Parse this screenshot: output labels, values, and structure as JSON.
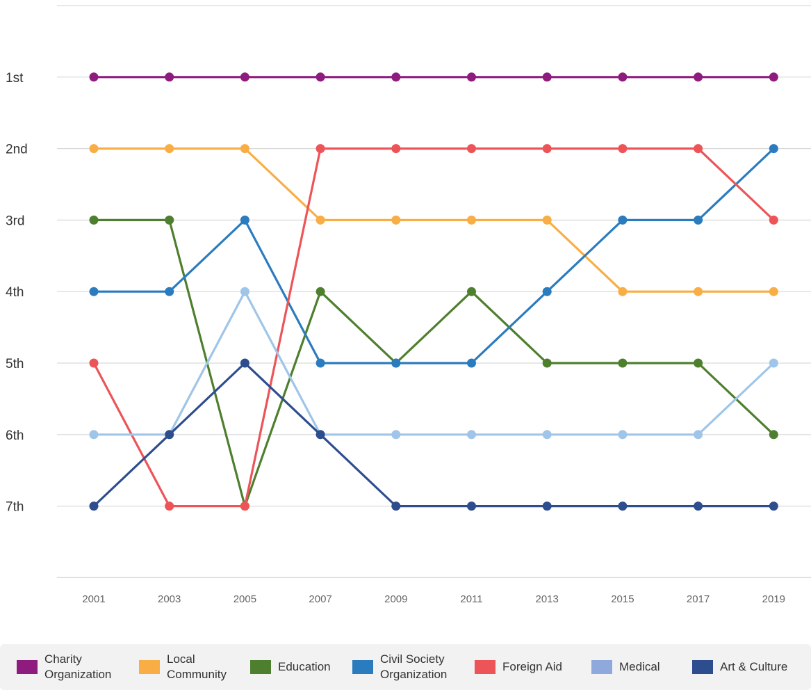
{
  "chart_data": {
    "type": "line",
    "title": "",
    "xlabel": "",
    "ylabel": "",
    "categories": [
      "2001",
      "2003",
      "2005",
      "2007",
      "2009",
      "2011",
      "2013",
      "2015",
      "2017",
      "2019"
    ],
    "ytick_labels": [
      "1st",
      "2nd",
      "3rd",
      "4th",
      "5th",
      "6th",
      "7th"
    ],
    "ylim": [
      0,
      8
    ],
    "y_inverted": true,
    "grid": "horizontal",
    "legend_position": "bottom",
    "series": [
      {
        "name": "Charity Organization",
        "color": "#8e1b7e",
        "values": [
          1,
          1,
          1,
          1,
          1,
          1,
          1,
          1,
          1,
          1
        ]
      },
      {
        "name": "Local Community",
        "color": "#f8ae45",
        "values": [
          2,
          2,
          2,
          3,
          3,
          3,
          3,
          4,
          4,
          4
        ]
      },
      {
        "name": "Education",
        "color": "#4e7f2e",
        "values": [
          3,
          3,
          7,
          4,
          5,
          4,
          5,
          5,
          5,
          6
        ]
      },
      {
        "name": "Civil Society Organization",
        "color": "#2b7bbf",
        "values": [
          4,
          4,
          3,
          5,
          5,
          5,
          4,
          3,
          3,
          2
        ]
      },
      {
        "name": "Foreign Aid",
        "color": "#ec5458",
        "values": [
          5,
          7,
          7,
          2,
          2,
          2,
          2,
          2,
          2,
          3
        ]
      },
      {
        "name": "Medical",
        "color": "#9fc5e8",
        "legend_color": "#8fa9dc",
        "values": [
          6,
          6,
          4,
          6,
          6,
          6,
          6,
          6,
          6,
          5
        ]
      },
      {
        "name": "Art & Culture",
        "color": "#2e4d8e",
        "values": [
          7,
          6,
          5,
          6,
          7,
          7,
          7,
          7,
          7,
          7
        ]
      }
    ]
  },
  "legend": {
    "items": [
      {
        "line1": "Charity",
        "line2": "Organization"
      },
      {
        "line1": "Local",
        "line2": "Community"
      },
      {
        "line1": "Education",
        "line2": ""
      },
      {
        "line1": "Civil Society",
        "line2": "Organization"
      },
      {
        "line1": "Foreign Aid",
        "line2": ""
      },
      {
        "line1": "Medical",
        "line2": ""
      },
      {
        "line1": "Art & Culture",
        "line2": ""
      }
    ]
  }
}
